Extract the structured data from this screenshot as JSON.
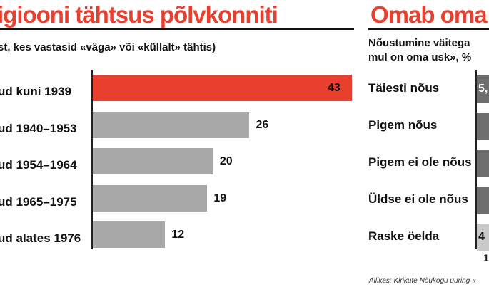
{
  "chart_data": [
    {
      "type": "bar",
      "orientation": "horizontal",
      "title": "igiooni tähtsus põlvkonniti",
      "subtitle": "st, kes vastasid «väga» või «küllalt» tähtis)",
      "categories": [
        "ud kuni 1939",
        "ud 1940–1953",
        "ud 1954–1964",
        "ud 1965–1975",
        "ud alates 1976"
      ],
      "values": [
        43,
        26,
        20,
        19,
        12
      ],
      "highlight_color": "#e8402f",
      "bar_color": "#a8a8a8",
      "xlim": [
        0,
        43
      ]
    },
    {
      "type": "bar",
      "orientation": "horizontal",
      "title": "Omab oma",
      "subtitle": "Nõustumine väitega",
      "subtitle_line2": "mul on oma usk», %",
      "categories": [
        "Täiesti nõus",
        "Pigem nõus",
        "Pigem ei ole nõus",
        "Üldse ei ole nõus",
        "Raske öelda"
      ],
      "value_labels": [
        "5,",
        "",
        "",
        "",
        "4"
      ],
      "bottom_label": "1",
      "bar_color": "#6e6e6e",
      "source": "Allikas: Kirikute Nõukogu uuring «"
    }
  ]
}
